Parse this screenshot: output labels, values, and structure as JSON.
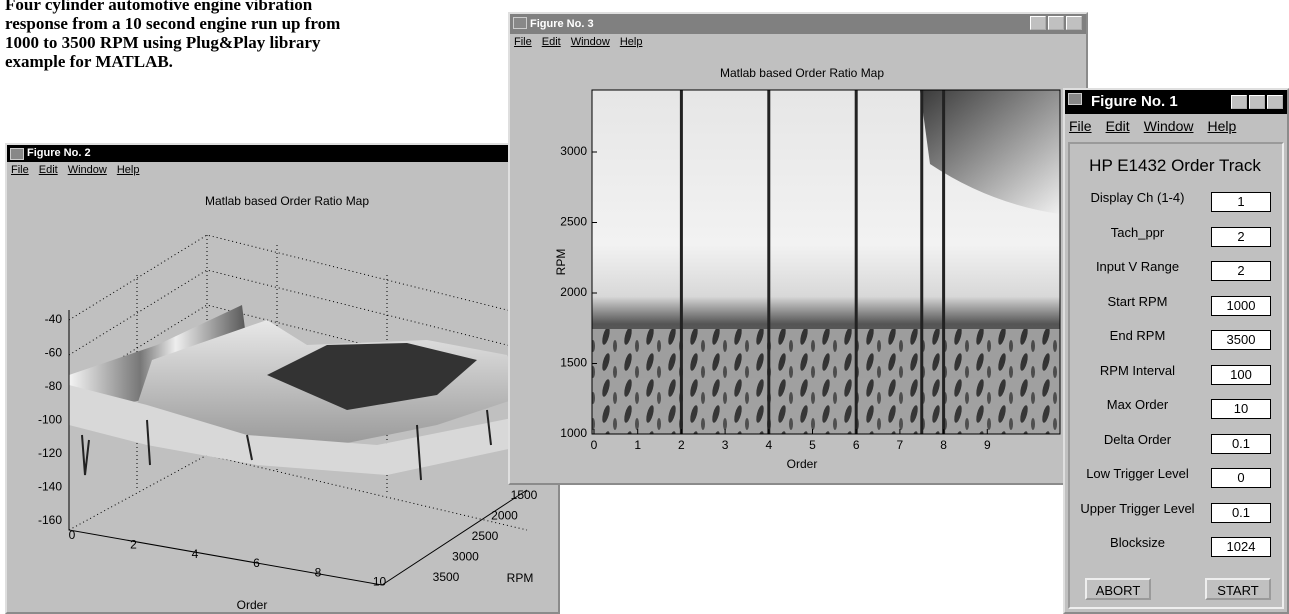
{
  "caption": "Four cylinder automotive engine vibration response from a 10 second engine run up from 1000 to 3500 RPM using Plug&Play library example for MATLAB.",
  "figure2": {
    "title": "Figure No. 2",
    "menu": [
      "File",
      "Edit",
      "Window",
      "Help"
    ],
    "plot_title": "Matlab based Order Ratio Map",
    "z_ticks": [
      "-40",
      "-60",
      "-80",
      "-100",
      "-120",
      "-140",
      "-160"
    ],
    "x_ticks": [
      "0",
      "2",
      "4",
      "6",
      "8",
      "10"
    ],
    "x_label": "Order",
    "y_ticks": [
      "1500",
      "2000",
      "2500",
      "3000",
      "3500"
    ],
    "y_label": "RPM"
  },
  "figure3": {
    "title": "Figure No. 3",
    "menu": [
      "File",
      "Edit",
      "Window",
      "Help"
    ],
    "plot_title": "Matlab based Order Ratio Map",
    "y_ticks": [
      "1000",
      "1500",
      "2000",
      "2500",
      "3000"
    ],
    "y_label": "RPM",
    "x_ticks": [
      "0",
      "1",
      "2",
      "3",
      "4",
      "5",
      "6",
      "7",
      "8",
      "9"
    ],
    "x_label": "Order"
  },
  "figure1": {
    "title": "Figure No. 1",
    "menu": [
      "File",
      "Edit",
      "Window",
      "Help"
    ],
    "heading": "HP E1432 Order Track",
    "fields": [
      {
        "label": "Display Ch (1-4)",
        "value": "1"
      },
      {
        "label": "Tach_ppr",
        "value": "2"
      },
      {
        "label": "Input V Range",
        "value": "2"
      },
      {
        "label": "Start RPM",
        "value": "1000"
      },
      {
        "label": "End RPM",
        "value": "3500"
      },
      {
        "label": "RPM Interval",
        "value": "100"
      },
      {
        "label": "Max Order",
        "value": "10"
      },
      {
        "label": "Delta Order",
        "value": "0.1"
      },
      {
        "label": "Low Trigger Level",
        "value": "0"
      },
      {
        "label": "Upper Trigger Level",
        "value": "0.1"
      },
      {
        "label": "Blocksize",
        "value": "1024"
      }
    ],
    "buttons": [
      "ABORT",
      "START"
    ]
  }
}
